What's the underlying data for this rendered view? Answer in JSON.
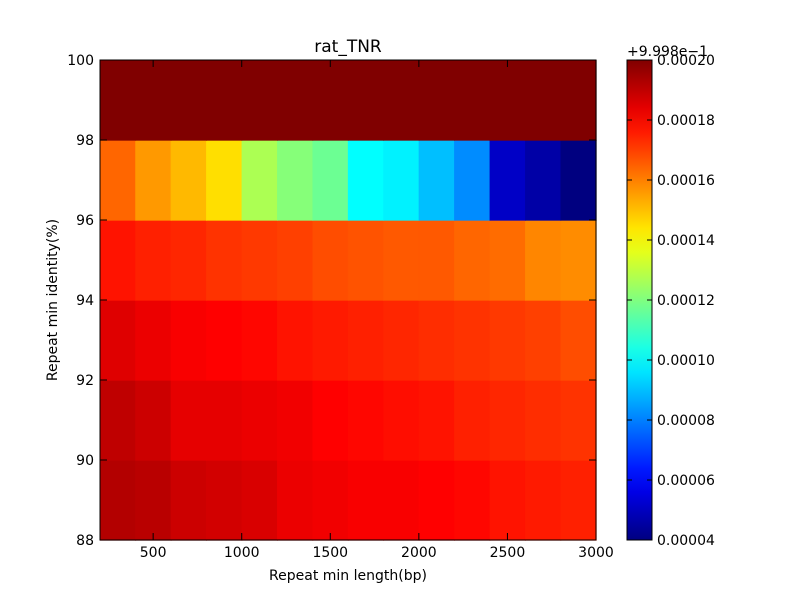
{
  "chart_data": {
    "type": "heatmap",
    "title": "rat_TNR",
    "xlabel": "Repeat min length(bp)",
    "ylabel": "Repeat min identity(%)",
    "xlim": [
      200,
      3000
    ],
    "ylim": [
      88,
      100
    ],
    "x_ticks": [
      500,
      1000,
      1500,
      2000,
      2500,
      3000
    ],
    "y_ticks": [
      88,
      90,
      92,
      94,
      96,
      98,
      100
    ],
    "x_edges": [
      200,
      400,
      600,
      800,
      1000,
      1200,
      1400,
      1600,
      1800,
      2000,
      2200,
      2400,
      2600,
      2800,
      3000
    ],
    "y_edges": [
      88,
      90,
      92,
      94,
      96,
      98,
      100
    ],
    "colormap": "jet",
    "colorbar": {
      "offset_label": "+9.998e−1",
      "vmin": 4e-05,
      "vmax": 0.0002,
      "ticks": [
        4e-05,
        6e-05,
        8e-05,
        0.0001,
        0.00012,
        0.00014,
        0.00016,
        0.00018,
        0.0002
      ],
      "tick_labels": [
        "0.00004",
        "0.00006",
        "0.00008",
        "0.00010",
        "0.00012",
        "0.00014",
        "0.00016",
        "0.00018",
        "0.00020"
      ]
    },
    "values_note_units": "colorbar units (value minus 0.9998)",
    "values": [
      [
        0.000192,
        0.000191,
        0.000188,
        0.000187,
        0.000186,
        0.000183,
        0.000182,
        0.000181,
        0.000181,
        0.00018,
        0.000179,
        0.000177,
        0.000176,
        0.000175
      ],
      [
        0.00019,
        0.000188,
        0.000184,
        0.000184,
        0.000183,
        0.000182,
        0.00018,
        0.000179,
        0.000178,
        0.000177,
        0.000175,
        0.000174,
        0.000173,
        0.000172
      ],
      [
        0.000185,
        0.000183,
        0.000181,
        0.00018,
        0.000179,
        0.000177,
        0.000176,
        0.000175,
        0.000174,
        0.000173,
        0.000172,
        0.000171,
        0.00017,
        0.000168
      ],
      [
        0.000177,
        0.000175,
        0.000174,
        0.000172,
        0.000171,
        0.00017,
        0.000168,
        0.000167,
        0.000166,
        0.000166,
        0.000164,
        0.000163,
        0.000159,
        0.000158
      ],
      [
        0.000164,
        0.000156,
        0.000151,
        0.000145,
        0.000127,
        0.000121,
        0.000117,
        0.0001,
        9.8e-05,
        9e-05,
        8.2e-05,
        5.1e-05,
        4.6e-05,
        4e-05
      ],
      [
        0.0002,
        0.0002,
        0.0002,
        0.0002,
        0.0002,
        0.0002,
        0.0002,
        0.0002,
        0.0002,
        0.0002,
        0.0002,
        0.0002,
        0.0002,
        0.0002
      ]
    ]
  }
}
